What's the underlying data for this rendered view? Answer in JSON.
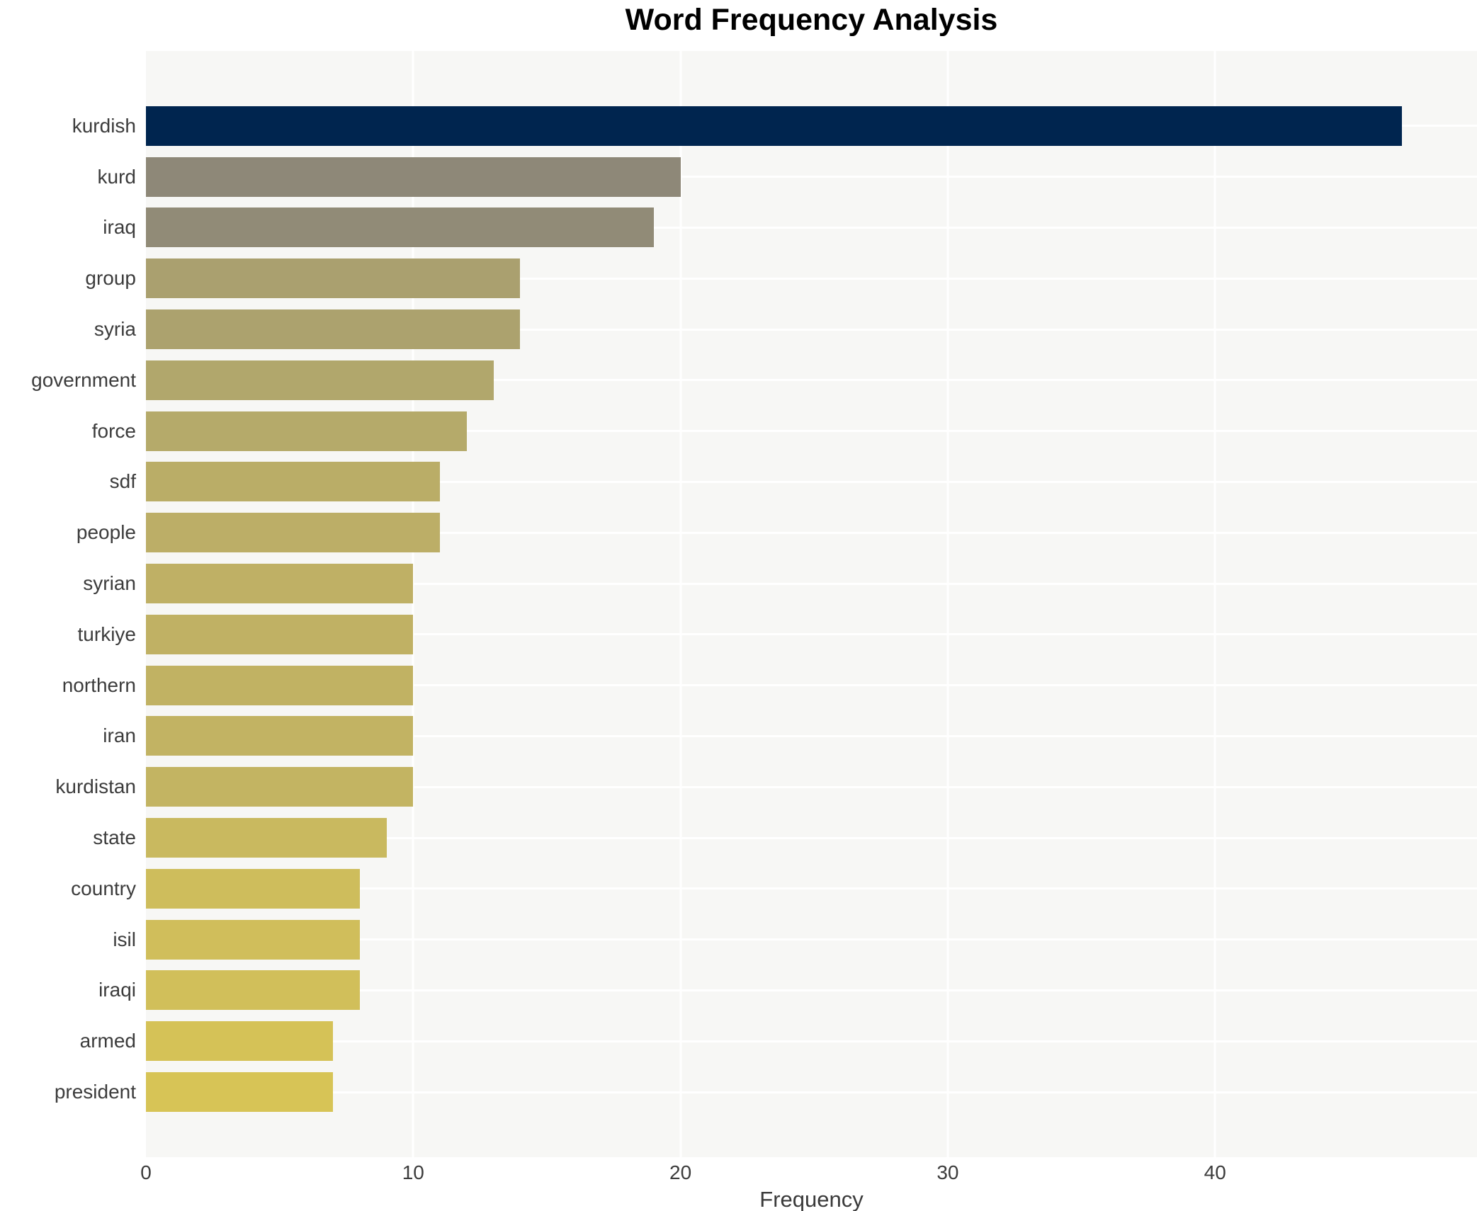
{
  "chart_data": {
    "type": "bar",
    "orientation": "horizontal",
    "title": "Word Frequency Analysis",
    "xlabel": "Frequency",
    "ylabel": "",
    "categories": [
      "kurdish",
      "kurd",
      "iraq",
      "group",
      "syria",
      "government",
      "force",
      "sdf",
      "people",
      "syrian",
      "turkiye",
      "northern",
      "iran",
      "kurdistan",
      "state",
      "country",
      "isil",
      "iraqi",
      "armed",
      "president"
    ],
    "values": [
      47,
      20,
      19,
      14,
      14,
      13,
      12,
      11,
      11,
      10,
      10,
      10,
      10,
      10,
      9,
      8,
      8,
      8,
      7,
      7
    ],
    "bar_colors": [
      "#00254f",
      "#8e8878",
      "#918b77",
      "#aaa06f",
      "#aca26e",
      "#b1a76c",
      "#b5aa6a",
      "#baad67",
      "#bcae67",
      "#bfb065",
      "#c0b164",
      "#c1b263",
      "#c2b363",
      "#c3b462",
      "#c9b95f",
      "#cebd5c",
      "#d0be5b",
      "#d1bf5a",
      "#d5c257",
      "#d7c456"
    ],
    "x_ticks": [
      0,
      10,
      20,
      30,
      40
    ],
    "xlim": [
      0,
      49.8
    ],
    "grid": true,
    "legend_position": "none",
    "plot_background": "#f7f7f5",
    "grid_color": "#ffffff"
  }
}
